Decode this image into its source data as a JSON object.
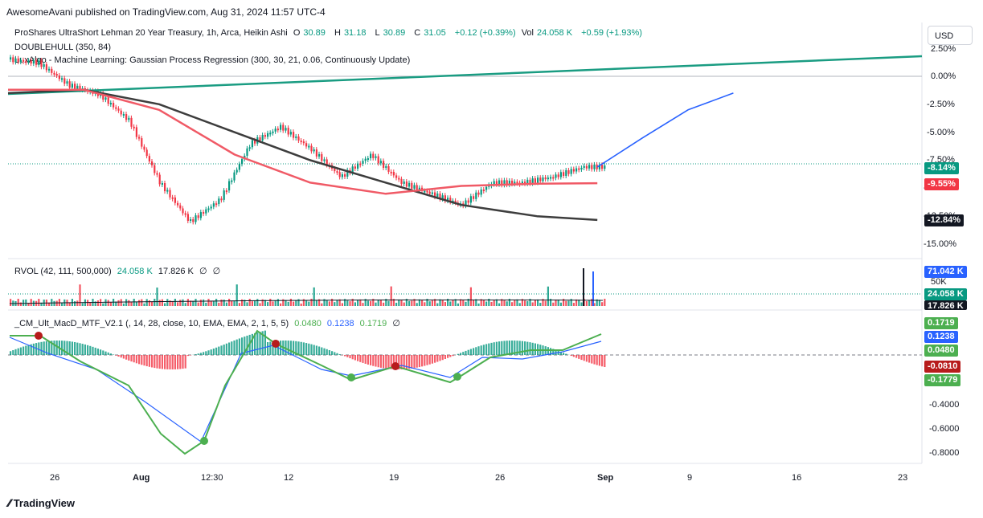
{
  "header": {
    "published": "AwesomeAvani published on TradingView.com, Aug 31, 2024 11:57 UTC-4"
  },
  "legend": {
    "symbol": "ProShares UltraShort Lehman 20 Year Treasury, 1h, Arca, Heikin Ashi",
    "o_label": "O",
    "o": "30.89",
    "h_label": "H",
    "h": "31.18",
    "l_label": "L",
    "l": "30.89",
    "c_label": "C",
    "c": "31.05",
    "change": "+0.12 (+0.39%)",
    "vol_label": "Vol",
    "vol": "24.058 K",
    "vol_change": "+0.59 (+1.93%)",
    "indicator1": "DOUBLEHULL (350, 84)",
    "indicator2": "LuxAlgo - Machine Learning: Gaussian Process Regression (300, 30, 21, 0.06, Continuously Update)",
    "rvol_name": "RVOL (42, 111, 500,000)",
    "rvol_v1": "24.058 K",
    "rvol_v2": "17.826 K",
    "rvol_v3": "∅",
    "rvol_v4": "∅",
    "macd_name": "_CM_Ult_MacD_MTF_V2.1 (, 14, 28, close, 10, EMA, EMA, 2, 1, 5, 5)",
    "macd_v1": "0.0480",
    "macd_v2": "0.1238",
    "macd_v3": "0.1719",
    "macd_v4": "∅"
  },
  "toolbar": {
    "currency": "USD"
  },
  "colors": {
    "up": "#089981",
    "down": "#f23645",
    "hull": "#f05a66",
    "hull_slow": "#3d3d3d",
    "gpr": "#2962ff",
    "trend": "#1a9c82",
    "macd_line": "#2962ff",
    "signal_up": "#4caf50",
    "signal_down": "#b71c1c"
  },
  "price_axis": {
    "ticks": [
      "2.50%",
      "0.00%",
      "-2.50%",
      "-5.00%",
      "-7.50%",
      "-10.00%",
      "-12.50%",
      "-15.00%"
    ],
    "tags": [
      {
        "text": "-8.14%",
        "color": "#089981"
      },
      {
        "text": "-9.55%",
        "color": "#f23645"
      },
      {
        "text": "-12.84%",
        "color": "#131722"
      }
    ]
  },
  "volume_axis": {
    "ticks": [
      "50K"
    ],
    "tags": [
      {
        "text": "71.042 K",
        "color": "#2962ff"
      },
      {
        "text": "24.058 K",
        "color": "#089981"
      },
      {
        "text": "17.826 K",
        "color": "#131722"
      }
    ]
  },
  "macd_axis": {
    "ticks": [
      "-0.4000",
      "-0.6000",
      "-0.8000"
    ],
    "tags": [
      {
        "text": "0.1719",
        "color": "#4caf50"
      },
      {
        "text": "0.1238",
        "color": "#2962ff"
      },
      {
        "text": "0.0480",
        "color": "#4caf50"
      },
      {
        "text": "-0.0810",
        "color": "#b71c1c"
      },
      {
        "text": "-0.1779",
        "color": "#4caf50"
      }
    ]
  },
  "time_axis": [
    "26",
    "Aug",
    "12:30",
    "12",
    "19",
    "26",
    "Sep",
    "9",
    "16",
    "23"
  ],
  "footer": {
    "brand": "TradingView"
  },
  "chart_data": {
    "type": "line",
    "title": "ProShares UltraShort Lehman 20 Year Treasury, 1h, Arca, Heikin Ashi",
    "y_unit": "% change",
    "ylim": [
      -16,
      3
    ],
    "x_range": [
      "Jul 23",
      "Sep 24"
    ],
    "series": [
      {
        "name": "",
        "x": [
          "Jul 23",
          "Jul 25",
          "Jul 27",
          "Jul 29",
          "Jul 31",
          "Aug 2",
          "Aug 4",
          "Aug 6",
          "Aug 8",
          "Aug 10",
          "Aug 12",
          "Aug 14",
          "Aug 16",
          "Aug 18",
          "Aug 20",
          "Aug 22",
          "Aug 24",
          "Aug 26",
          "Aug 28",
          "Aug 30"
        ],
        "values": [
          1.5,
          1.2,
          -0.8,
          -1.6,
          -4.0,
          -9.5,
          -13.0,
          -11.0,
          -6.0,
          -4.5,
          -6.5,
          -9.0,
          -7.0,
          -9.5,
          -10.5,
          -11.5,
          -9.5,
          -9.5,
          -9.0,
          -8.1
        ]
      },
      {
        "name": "DOUBLEHULL (350, 84)",
        "x": [
          "Jul 23",
          "Jul 28",
          "Aug 2",
          "Aug 7",
          "Aug 12",
          "Aug 17",
          "Aug 22",
          "Aug 27",
          "Aug 31"
        ],
        "values": [
          -1.2,
          -1.2,
          -3.0,
          -7.0,
          -9.5,
          -10.5,
          -9.8,
          -9.6,
          -9.55
        ]
      },
      {
        "name": "",
        "x": [
          "Jul 23",
          "Jul 28",
          "Aug 2",
          "Aug 7",
          "Aug 12",
          "Aug 17",
          "Aug 22",
          "Aug 27",
          "Aug 31"
        ],
        "values": [
          -1.5,
          -1.2,
          -2.5,
          -5.0,
          -7.5,
          -9.5,
          -11.5,
          -12.5,
          -12.84
        ]
      },
      {
        "name": "",
        "x": [
          "Aug 31",
          "Sep 3",
          "Sep 6",
          "Sep 9"
        ],
        "values": [
          -8.1,
          -5.5,
          -3.0,
          -1.5
        ]
      }
    ],
    "rvol": {
      "values_k": [
        24.058,
        17.826,
        71.042
      ]
    },
    "macd": {
      "macd": 0.048,
      "signal": 0.1238,
      "line": 0.1719,
      "ylim": [
        -0.85,
        0.25
      ]
    }
  }
}
